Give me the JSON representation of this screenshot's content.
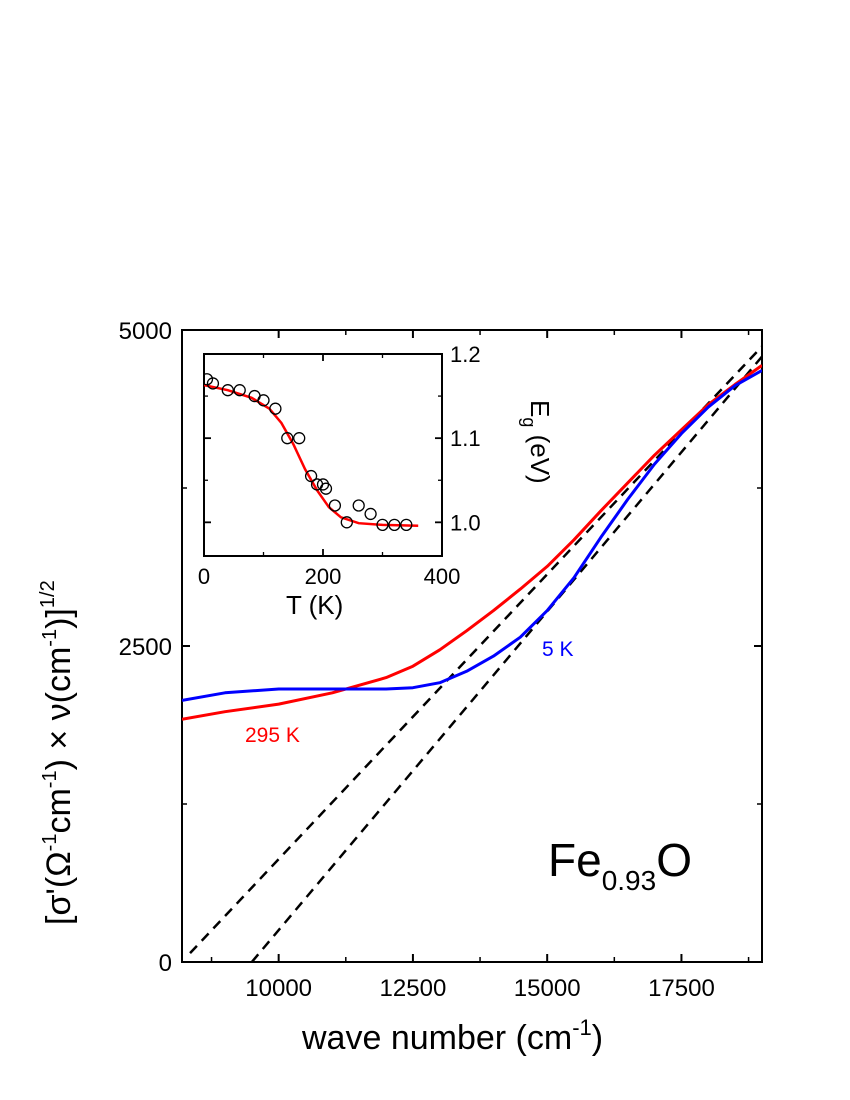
{
  "chart_data": [
    {
      "type": "line",
      "title": "",
      "xlabel": "wave number (cm",
      "xlabel_sup": "-1",
      "xlabel_tail": ")",
      "ylabel_parts": [
        "[σ'(Ω",
        "-1",
        "cm",
        "-1",
        ") × ν(cm",
        "-1",
        ")]",
        "1/2"
      ],
      "xlim": [
        8200,
        19000
      ],
      "ylim": [
        0,
        5000
      ],
      "x_ticks": [
        10000,
        12500,
        15000,
        17500
      ],
      "x_tick_labels": [
        "10000",
        "12500",
        "15000",
        "17500"
      ],
      "y_ticks": [
        0,
        2500,
        5000
      ],
      "y_tick_labels": [
        "0",
        "2500",
        "5000"
      ],
      "sample_label_main": "Fe",
      "sample_label_sub": "0.93",
      "sample_label_tail": "O",
      "series": [
        {
          "name": "295 K",
          "color": "#ff0000",
          "x": [
            8200,
            9000,
            10000,
            11000,
            12000,
            12500,
            13000,
            13500,
            14000,
            14500,
            15000,
            15500,
            16000,
            16500,
            17000,
            17500,
            18000,
            18500,
            19000
          ],
          "y": [
            1920,
            1980,
            2040,
            2130,
            2250,
            2340,
            2470,
            2620,
            2780,
            2950,
            3130,
            3340,
            3570,
            3790,
            4010,
            4210,
            4410,
            4570,
            4720
          ]
        },
        {
          "name": "5 K",
          "color": "#0000ff",
          "x": [
            8200,
            9000,
            10000,
            11000,
            12000,
            12500,
            13000,
            13500,
            14000,
            14500,
            15000,
            15500,
            16000,
            16500,
            17000,
            17500,
            18000,
            18500,
            19000
          ],
          "y": [
            2070,
            2130,
            2160,
            2160,
            2160,
            2170,
            2210,
            2300,
            2420,
            2570,
            2780,
            3040,
            3360,
            3660,
            3940,
            4180,
            4390,
            4560,
            4680
          ]
        }
      ],
      "fit_lines": [
        {
          "color": "#000000",
          "style": "dashed",
          "x": [
            8350,
            19000
          ],
          "y": [
            70,
            4870
          ]
        },
        {
          "color": "#000000",
          "style": "dashed",
          "x": [
            9500,
            19000
          ],
          "y": [
            0,
            4790
          ]
        }
      ]
    },
    {
      "type": "scatter",
      "title": "",
      "xlabel": "T (K)",
      "ylabel_main": "E",
      "ylabel_sub": "g",
      "ylabel_tail": " (eV)",
      "xlim": [
        0,
        400
      ],
      "ylim": [
        0.96,
        1.2
      ],
      "x_ticks": [
        0,
        200,
        400
      ],
      "x_tick_labels": [
        "0",
        "200",
        "400"
      ],
      "y_ticks": [
        1.0,
        1.1,
        1.2
      ],
      "y_tick_labels": [
        "1.0",
        "1.1",
        "1.2"
      ],
      "points": {
        "x": [
          5,
          15,
          40,
          60,
          85,
          100,
          120,
          140,
          160,
          180,
          190,
          200,
          205,
          220,
          240,
          260,
          280,
          300,
          320,
          340
        ],
        "y": [
          1.17,
          1.165,
          1.157,
          1.157,
          1.15,
          1.145,
          1.135,
          1.1,
          1.1,
          1.055,
          1.045,
          1.045,
          1.04,
          1.02,
          1.0,
          1.02,
          1.01,
          0.997,
          0.997,
          0.997
        ]
      },
      "fit": {
        "color": "#ff0000",
        "x": [
          0,
          40,
          80,
          110,
          130,
          150,
          170,
          190,
          210,
          230,
          260,
          300,
          360
        ],
        "y": [
          1.163,
          1.157,
          1.148,
          1.135,
          1.118,
          1.093,
          1.063,
          1.038,
          1.018,
          1.006,
          0.999,
          0.997,
          0.996
        ]
      }
    }
  ]
}
